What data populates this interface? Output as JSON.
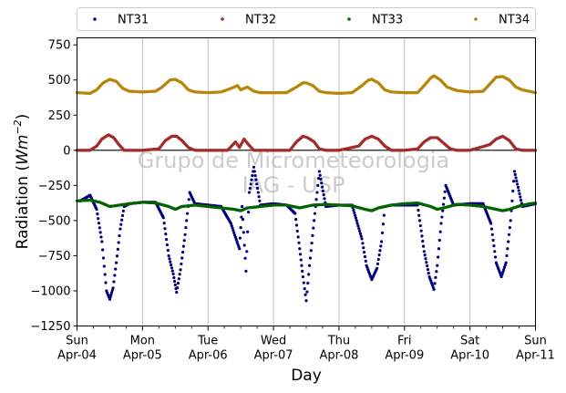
{
  "chart_data": {
    "type": "scatter",
    "xlabel": "Day",
    "ylabel_main": "Radiation (",
    "ylabel_unit": "Wm",
    "ylabel_exp": "−2",
    "ylabel_close": ")",
    "ylim": [
      -1250,
      800
    ],
    "xlim": [
      0,
      7
    ],
    "yticks": [
      750,
      500,
      250,
      0,
      -250,
      -500,
      -750,
      -1000,
      -1250
    ],
    "ytick_labels": [
      "750",
      "500",
      "250",
      "0",
      "−250",
      "−500",
      "−750",
      "−1000",
      "−1250"
    ],
    "xticks": [
      {
        "x": 0,
        "day": "Sun",
        "date": "Apr-04"
      },
      {
        "x": 1,
        "day": "Mon",
        "date": "Apr-05"
      },
      {
        "x": 2,
        "day": "Tue",
        "date": "Apr-06"
      },
      {
        "x": 3,
        "day": "Wed",
        "date": "Apr-07"
      },
      {
        "x": 4,
        "day": "Thu",
        "date": "Apr-08"
      },
      {
        "x": 5,
        "day": "Fri",
        "date": "Apr-09"
      },
      {
        "x": 6,
        "day": "Sat",
        "date": "Apr-10"
      },
      {
        "x": 7,
        "day": "Sun",
        "date": "Apr-11"
      }
    ],
    "grid": "vertical",
    "legend_position": "top",
    "watermark_line1": "Grupo de Micrometeorologia",
    "watermark_line2": "IAG - USP",
    "series": [
      {
        "name": "NT31",
        "color": "#00007f",
        "points": [
          [
            0.05,
            -360
          ],
          [
            0.2,
            -320
          ],
          [
            0.3,
            -420
          ],
          [
            0.38,
            -650
          ],
          [
            0.45,
            -1000
          ],
          [
            0.5,
            -1060
          ],
          [
            0.55,
            -980
          ],
          [
            0.6,
            -800
          ],
          [
            0.66,
            -560
          ],
          [
            0.72,
            -400
          ],
          [
            0.8,
            -380
          ],
          [
            1.0,
            -370
          ],
          [
            1.2,
            -370
          ],
          [
            1.32,
            -480
          ],
          [
            1.4,
            -750
          ],
          [
            1.47,
            -880
          ],
          [
            1.52,
            -1010
          ],
          [
            1.58,
            -850
          ],
          [
            1.65,
            -600
          ],
          [
            1.72,
            -300
          ],
          [
            1.8,
            -380
          ],
          [
            2.0,
            -390
          ],
          [
            2.2,
            -400
          ],
          [
            2.35,
            -520
          ],
          [
            2.42,
            -620
          ],
          [
            2.48,
            -700
          ],
          [
            2.52,
            -400
          ],
          [
            2.58,
            -860
          ],
          [
            2.63,
            -300
          ],
          [
            2.7,
            -120
          ],
          [
            2.8,
            -390
          ],
          [
            3.0,
            -380
          ],
          [
            3.2,
            -390
          ],
          [
            3.33,
            -450
          ],
          [
            3.4,
            -700
          ],
          [
            3.45,
            -900
          ],
          [
            3.5,
            -1070
          ],
          [
            3.55,
            -820
          ],
          [
            3.62,
            -500
          ],
          [
            3.7,
            -150
          ],
          [
            3.8,
            -400
          ],
          [
            4.0,
            -390
          ],
          [
            4.2,
            -390
          ],
          [
            4.35,
            -630
          ],
          [
            4.42,
            -820
          ],
          [
            4.5,
            -920
          ],
          [
            4.58,
            -840
          ],
          [
            4.65,
            -650
          ],
          [
            4.7,
            -400
          ],
          [
            4.8,
            -390
          ],
          [
            5.0,
            -390
          ],
          [
            5.2,
            -390
          ],
          [
            5.3,
            -720
          ],
          [
            5.38,
            -900
          ],
          [
            5.45,
            -990
          ],
          [
            5.5,
            -820
          ],
          [
            5.56,
            -520
          ],
          [
            5.63,
            -250
          ],
          [
            5.75,
            -390
          ],
          [
            6.0,
            -380
          ],
          [
            6.2,
            -380
          ],
          [
            6.32,
            -520
          ],
          [
            6.4,
            -800
          ],
          [
            6.48,
            -900
          ],
          [
            6.55,
            -800
          ],
          [
            6.62,
            -500
          ],
          [
            6.68,
            -150
          ],
          [
            6.8,
            -400
          ],
          [
            7.0,
            -380
          ]
        ]
      },
      {
        "name": "NT32",
        "color": "#a52a2a",
        "points": [
          [
            0.0,
            0
          ],
          [
            0.2,
            0
          ],
          [
            0.3,
            30
          ],
          [
            0.38,
            80
          ],
          [
            0.48,
            110
          ],
          [
            0.56,
            90
          ],
          [
            0.64,
            40
          ],
          [
            0.72,
            0
          ],
          [
            1.0,
            0
          ],
          [
            1.25,
            10
          ],
          [
            1.35,
            70
          ],
          [
            1.45,
            100
          ],
          [
            1.52,
            100
          ],
          [
            1.6,
            70
          ],
          [
            1.7,
            20
          ],
          [
            1.8,
            0
          ],
          [
            2.0,
            0
          ],
          [
            2.3,
            0
          ],
          [
            2.42,
            60
          ],
          [
            2.48,
            20
          ],
          [
            2.55,
            80
          ],
          [
            2.62,
            40
          ],
          [
            2.7,
            0
          ],
          [
            3.0,
            0
          ],
          [
            3.25,
            0
          ],
          [
            3.35,
            60
          ],
          [
            3.45,
            100
          ],
          [
            3.52,
            90
          ],
          [
            3.62,
            60
          ],
          [
            3.7,
            10
          ],
          [
            3.8,
            0
          ],
          [
            4.0,
            0
          ],
          [
            4.3,
            30
          ],
          [
            4.4,
            80
          ],
          [
            4.5,
            100
          ],
          [
            4.6,
            80
          ],
          [
            4.7,
            30
          ],
          [
            4.8,
            0
          ],
          [
            5.0,
            0
          ],
          [
            5.2,
            10
          ],
          [
            5.3,
            60
          ],
          [
            5.4,
            90
          ],
          [
            5.5,
            90
          ],
          [
            5.6,
            50
          ],
          [
            5.7,
            10
          ],
          [
            5.8,
            0
          ],
          [
            6.0,
            0
          ],
          [
            6.3,
            40
          ],
          [
            6.4,
            80
          ],
          [
            6.5,
            100
          ],
          [
            6.6,
            70
          ],
          [
            6.7,
            10
          ],
          [
            6.8,
            0
          ],
          [
            7.0,
            0
          ]
        ]
      },
      {
        "name": "NT33",
        "color": "#006400",
        "points": [
          [
            0.0,
            -360
          ],
          [
            0.2,
            -355
          ],
          [
            0.35,
            -370
          ],
          [
            0.5,
            -400
          ],
          [
            0.65,
            -390
          ],
          [
            0.8,
            -380
          ],
          [
            1.0,
            -370
          ],
          [
            1.2,
            -375
          ],
          [
            1.4,
            -400
          ],
          [
            1.5,
            -420
          ],
          [
            1.6,
            -400
          ],
          [
            1.8,
            -390
          ],
          [
            2.0,
            -400
          ],
          [
            2.2,
            -410
          ],
          [
            2.4,
            -420
          ],
          [
            2.5,
            -430
          ],
          [
            2.6,
            -410
          ],
          [
            2.8,
            -400
          ],
          [
            3.0,
            -390
          ],
          [
            3.2,
            -390
          ],
          [
            3.4,
            -410
          ],
          [
            3.5,
            -400
          ],
          [
            3.6,
            -390
          ],
          [
            3.8,
            -385
          ],
          [
            4.0,
            -390
          ],
          [
            4.2,
            -395
          ],
          [
            4.4,
            -420
          ],
          [
            4.5,
            -430
          ],
          [
            4.6,
            -410
          ],
          [
            4.8,
            -390
          ],
          [
            5.0,
            -380
          ],
          [
            5.2,
            -375
          ],
          [
            5.4,
            -400
          ],
          [
            5.5,
            -420
          ],
          [
            5.6,
            -410
          ],
          [
            5.8,
            -385
          ],
          [
            6.0,
            -390
          ],
          [
            6.2,
            -400
          ],
          [
            6.4,
            -420
          ],
          [
            6.5,
            -430
          ],
          [
            6.6,
            -420
          ],
          [
            6.8,
            -390
          ],
          [
            7.0,
            -375
          ]
        ]
      },
      {
        "name": "NT34",
        "color": "#b8860b",
        "points": [
          [
            0.0,
            410
          ],
          [
            0.2,
            405
          ],
          [
            0.3,
            430
          ],
          [
            0.4,
            480
          ],
          [
            0.5,
            505
          ],
          [
            0.6,
            490
          ],
          [
            0.7,
            440
          ],
          [
            0.8,
            420
          ],
          [
            1.0,
            415
          ],
          [
            1.2,
            420
          ],
          [
            1.3,
            450
          ],
          [
            1.42,
            500
          ],
          [
            1.5,
            505
          ],
          [
            1.6,
            480
          ],
          [
            1.7,
            430
          ],
          [
            1.8,
            415
          ],
          [
            2.0,
            410
          ],
          [
            2.2,
            415
          ],
          [
            2.35,
            440
          ],
          [
            2.45,
            460
          ],
          [
            2.5,
            430
          ],
          [
            2.6,
            450
          ],
          [
            2.7,
            420
          ],
          [
            2.8,
            410
          ],
          [
            3.0,
            410
          ],
          [
            3.2,
            410
          ],
          [
            3.35,
            450
          ],
          [
            3.45,
            480
          ],
          [
            3.5,
            480
          ],
          [
            3.6,
            460
          ],
          [
            3.7,
            420
          ],
          [
            3.8,
            410
          ],
          [
            4.0,
            405
          ],
          [
            4.2,
            410
          ],
          [
            4.35,
            460
          ],
          [
            4.45,
            500
          ],
          [
            4.5,
            505
          ],
          [
            4.6,
            480
          ],
          [
            4.7,
            430
          ],
          [
            4.8,
            415
          ],
          [
            5.0,
            410
          ],
          [
            5.2,
            410
          ],
          [
            5.3,
            460
          ],
          [
            5.4,
            515
          ],
          [
            5.45,
            530
          ],
          [
            5.55,
            500
          ],
          [
            5.65,
            450
          ],
          [
            5.8,
            425
          ],
          [
            6.0,
            415
          ],
          [
            6.2,
            420
          ],
          [
            6.3,
            470
          ],
          [
            6.4,
            520
          ],
          [
            6.5,
            525
          ],
          [
            6.6,
            500
          ],
          [
            6.7,
            450
          ],
          [
            6.8,
            430
          ],
          [
            7.0,
            410
          ]
        ]
      }
    ]
  }
}
